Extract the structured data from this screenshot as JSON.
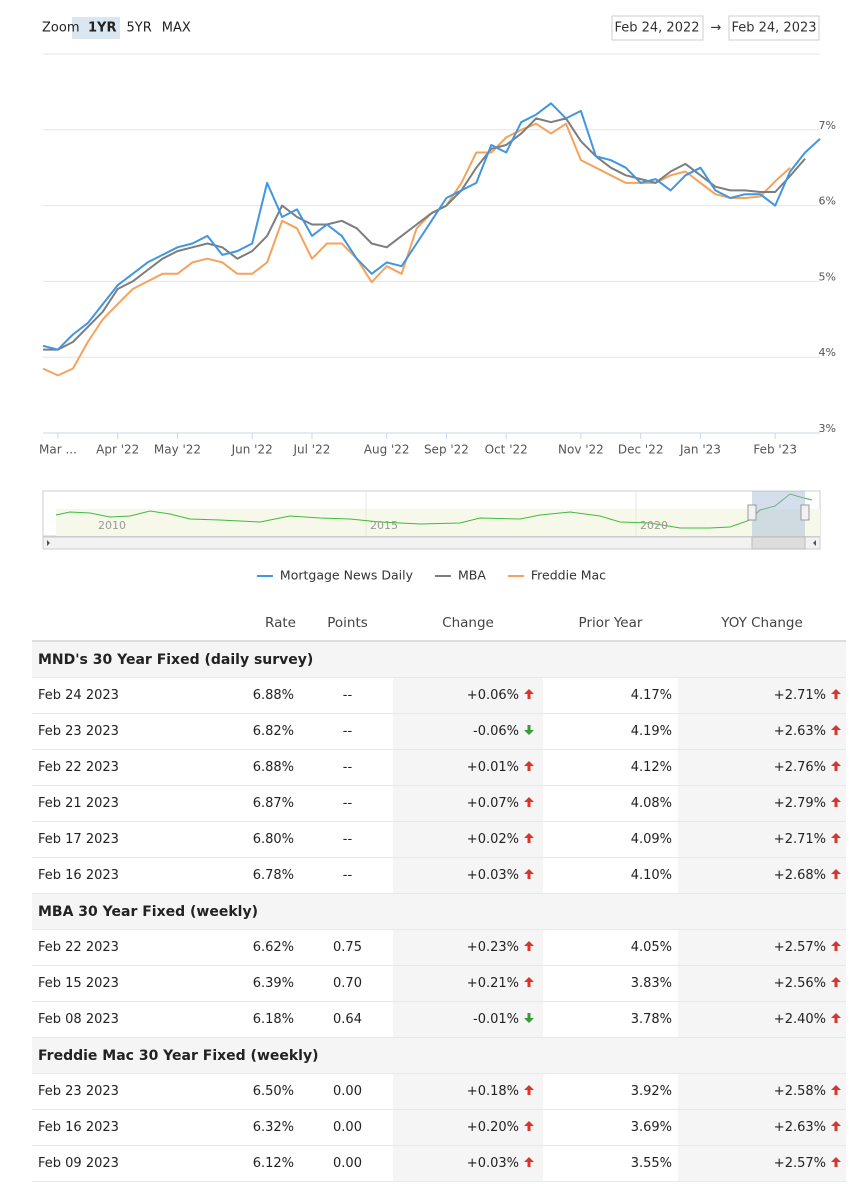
{
  "controls": {
    "zoom_label": "Zoom",
    "zoom_options": [
      "1YR",
      "5YR",
      "MAX"
    ],
    "selected": "1YR",
    "range_from": "Feb 24, 2022",
    "range_separator": "→",
    "range_to": "Feb 24, 2023"
  },
  "chart_data": {
    "type": "line",
    "x": [
      0,
      1,
      2,
      3,
      4,
      5,
      6,
      7,
      8,
      9,
      10,
      11,
      12,
      13,
      14,
      15,
      16,
      17,
      18,
      19,
      20,
      21,
      22,
      23,
      24,
      25,
      26,
      27,
      28,
      29,
      30,
      31,
      32,
      33,
      34,
      35,
      36,
      37,
      38,
      39,
      40,
      41,
      42,
      43,
      44,
      45,
      46,
      47,
      48,
      49,
      50,
      51,
      52
    ],
    "xlim": [
      0,
      52
    ],
    "xticks": [
      {
        "value": 1,
        "label": "Mar ..."
      },
      {
        "value": 5,
        "label": "Apr '22"
      },
      {
        "value": 9,
        "label": "May '22"
      },
      {
        "value": 14,
        "label": "Jun '22"
      },
      {
        "value": 18,
        "label": "Jul '22"
      },
      {
        "value": 23,
        "label": "Aug '22"
      },
      {
        "value": 27,
        "label": "Sep '22"
      },
      {
        "value": 31,
        "label": "Oct '22"
      },
      {
        "value": 36,
        "label": "Nov '22"
      },
      {
        "value": 40,
        "label": "Dec '22"
      },
      {
        "value": 44,
        "label": "Jan '23"
      },
      {
        "value": 49,
        "label": "Feb '23"
      }
    ],
    "ylim": [
      3,
      8
    ],
    "yticks": [
      {
        "value": 3,
        "label": "3%"
      },
      {
        "value": 4,
        "label": "4%"
      },
      {
        "value": 5,
        "label": "5%"
      },
      {
        "value": 6,
        "label": "6%"
      },
      {
        "value": 7,
        "label": "7%"
      }
    ],
    "grid": true,
    "legend": "bottom",
    "series": [
      {
        "name": "Mortgage News Daily",
        "color": "#4196e0",
        "values": [
          4.15,
          4.1,
          4.3,
          4.45,
          4.7,
          4.95,
          5.1,
          5.25,
          5.35,
          5.45,
          5.5,
          5.6,
          5.35,
          5.4,
          5.5,
          6.3,
          5.85,
          5.95,
          5.6,
          5.75,
          5.6,
          5.3,
          5.1,
          5.25,
          5.2,
          5.5,
          5.8,
          6.1,
          6.2,
          6.3,
          6.8,
          6.7,
          7.1,
          7.2,
          7.35,
          7.15,
          7.25,
          6.65,
          6.6,
          6.5,
          6.3,
          6.35,
          6.2,
          6.4,
          6.5,
          6.2,
          6.1,
          6.15,
          6.15,
          6.0,
          6.45,
          6.7,
          6.88
        ]
      },
      {
        "name": "MBA",
        "color": "#7d7d7d",
        "values": [
          4.1,
          4.1,
          4.2,
          4.4,
          4.6,
          4.9,
          5.0,
          5.15,
          5.3,
          5.4,
          5.45,
          5.5,
          5.45,
          5.3,
          5.4,
          5.6,
          6.0,
          5.85,
          5.75,
          5.75,
          5.8,
          5.7,
          5.5,
          5.45,
          5.6,
          5.75,
          5.9,
          6.0,
          6.2,
          6.5,
          6.75,
          6.8,
          6.95,
          7.15,
          7.1,
          7.15,
          6.85,
          6.65,
          6.5,
          6.4,
          6.35,
          6.3,
          6.45,
          6.55,
          6.4,
          6.25,
          6.2,
          6.2,
          6.18,
          6.18,
          6.39,
          6.62,
          null
        ]
      },
      {
        "name": "Freddie Mac",
        "color": "#f5a35c",
        "values": [
          3.85,
          3.76,
          3.85,
          4.2,
          4.5,
          4.7,
          4.9,
          5.0,
          5.1,
          5.1,
          5.25,
          5.3,
          5.25,
          5.1,
          5.1,
          5.25,
          5.8,
          5.7,
          5.3,
          5.5,
          5.5,
          5.3,
          4.99,
          5.2,
          5.1,
          5.7,
          5.9,
          6.0,
          6.3,
          6.7,
          6.7,
          6.9,
          7.0,
          7.08,
          6.95,
          7.08,
          6.6,
          6.5,
          6.4,
          6.3,
          6.3,
          6.3,
          6.4,
          6.45,
          6.3,
          6.15,
          6.1,
          6.1,
          6.12,
          6.32,
          6.5,
          null,
          null
        ]
      }
    ]
  },
  "navigator": {
    "labels": [
      "2010",
      "2015",
      "2020"
    ]
  },
  "table": {
    "columns": [
      "Rate",
      "Points",
      "Change",
      "Prior Year",
      "YOY Change"
    ],
    "sections": [
      {
        "title": "MND's 30 Year Fixed (daily survey)",
        "rows": [
          [
            "Feb 24 2023",
            "6.88%",
            "--",
            "+0.06%",
            "4.17%",
            "+2.71%"
          ],
          [
            "Feb 23 2023",
            "6.82%",
            "--",
            "-0.06%",
            "4.19%",
            "+2.63%"
          ],
          [
            "Feb 22 2023",
            "6.88%",
            "--",
            "+0.01%",
            "4.12%",
            "+2.76%"
          ],
          [
            "Feb 21 2023",
            "6.87%",
            "--",
            "+0.07%",
            "4.08%",
            "+2.79%"
          ],
          [
            "Feb 17 2023",
            "6.80%",
            "--",
            "+0.02%",
            "4.09%",
            "+2.71%"
          ],
          [
            "Feb 16 2023",
            "6.78%",
            "--",
            "+0.03%",
            "4.10%",
            "+2.68%"
          ]
        ]
      },
      {
        "title": "MBA 30 Year Fixed (weekly)",
        "rows": [
          [
            "Feb 22 2023",
            "6.62%",
            "0.75",
            "+0.23%",
            "4.05%",
            "+2.57%"
          ],
          [
            "Feb 15 2023",
            "6.39%",
            "0.70",
            "+0.21%",
            "3.83%",
            "+2.56%"
          ],
          [
            "Feb 08 2023",
            "6.18%",
            "0.64",
            "-0.01%",
            "3.78%",
            "+2.40%"
          ]
        ]
      },
      {
        "title": "Freddie Mac 30 Year Fixed (weekly)",
        "rows": [
          [
            "Feb 23 2023",
            "6.50%",
            "0.00",
            "+0.18%",
            "3.92%",
            "+2.58%"
          ],
          [
            "Feb 16 2023",
            "6.32%",
            "0.00",
            "+0.20%",
            "3.69%",
            "+2.63%"
          ],
          [
            "Feb 09 2023",
            "6.12%",
            "0.00",
            "+0.03%",
            "3.55%",
            "+2.57%"
          ]
        ]
      }
    ]
  }
}
